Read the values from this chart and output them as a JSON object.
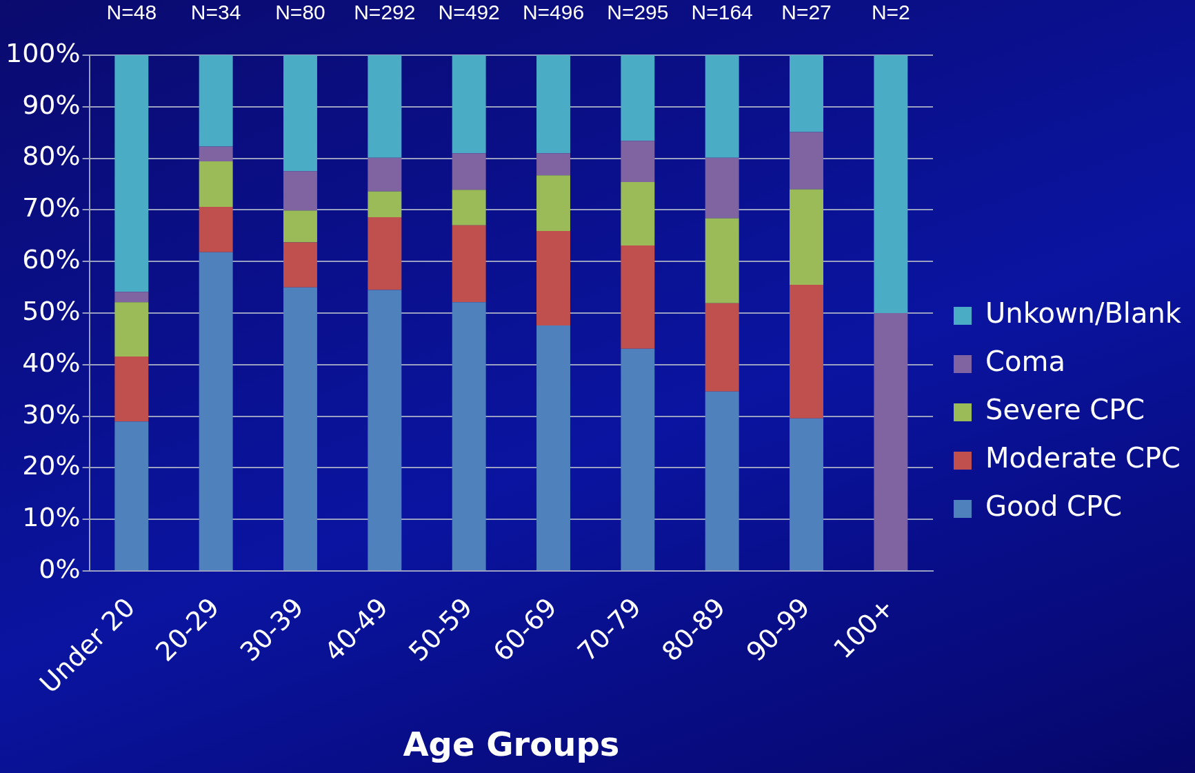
{
  "chart_data": {
    "type": "bar",
    "stacked": true,
    "xlabel": "Age Groups",
    "categories": [
      "Under 20",
      "20-29",
      "30-39",
      "40-49",
      "50-59",
      "60-69",
      "70-79",
      "80-89",
      "90-99",
      "100+"
    ],
    "series": [
      {
        "name": "Good CPC",
        "color": "#4f81bd",
        "values": [
          29.0,
          61.8,
          55.0,
          54.5,
          52.1,
          47.6,
          43.1,
          34.8,
          29.6,
          0
        ]
      },
      {
        "name": "Moderate CPC",
        "color": "#c0504d",
        "values": [
          12.6,
          8.8,
          8.7,
          14.1,
          14.9,
          18.3,
          20.0,
          17.1,
          25.9,
          0
        ]
      },
      {
        "name": "Severe CPC",
        "color": "#9bbb59",
        "values": [
          10.5,
          8.8,
          6.2,
          5.0,
          6.9,
          10.8,
          12.3,
          16.5,
          18.5,
          0
        ]
      },
      {
        "name": "Coma",
        "color": "#8064a2",
        "values": [
          2.0,
          2.9,
          7.6,
          6.5,
          7.1,
          4.3,
          8.0,
          11.7,
          11.1,
          50
        ]
      },
      {
        "name": "Unkown/Blank",
        "color": "#4bacc6",
        "values": [
          45.9,
          17.7,
          22.5,
          19.9,
          19.0,
          19.0,
          16.6,
          19.9,
          14.9,
          50
        ]
      }
    ],
    "annotations": [
      "N=48",
      "N=34",
      "N=80",
      "N=292",
      "N=492",
      "N=496",
      "N=295",
      "N=164",
      "N=27",
      "N=2"
    ],
    "ylim": [
      0,
      100
    ],
    "yticks": [
      {
        "value": 0,
        "label": "0%"
      },
      {
        "value": 10,
        "label": "10%"
      },
      {
        "value": 20,
        "label": "20%"
      },
      {
        "value": 30,
        "label": "30%"
      },
      {
        "value": 40,
        "label": "40%"
      },
      {
        "value": 50,
        "label": "50%"
      },
      {
        "value": 60,
        "label": "60%"
      },
      {
        "value": 70,
        "label": "70%"
      },
      {
        "value": 80,
        "label": "80%"
      },
      {
        "value": 90,
        "label": "90%"
      },
      {
        "value": 100,
        "label": "100%"
      }
    ],
    "grid": "y",
    "legend": "right"
  }
}
